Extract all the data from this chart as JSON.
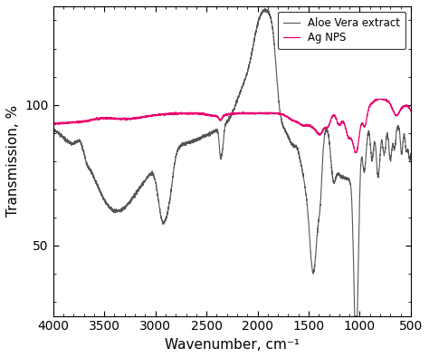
{
  "xlabel": "Wavenumber, cm⁻¹",
  "ylabel": "Transmission, %",
  "xlim": [
    4000,
    500
  ],
  "ylim": [
    25,
    135
  ],
  "yticks": [
    50,
    100
  ],
  "xticks": [
    4000,
    3500,
    3000,
    2500,
    2000,
    1500,
    1000,
    500
  ],
  "aloe_color": "#555555",
  "ag_color": "#e8006e",
  "legend_labels": [
    "Aloe Vera extract",
    "Ag NPS"
  ],
  "background_color": "#ffffff",
  "aloe_linewidth": 0.8,
  "ag_linewidth": 0.9
}
